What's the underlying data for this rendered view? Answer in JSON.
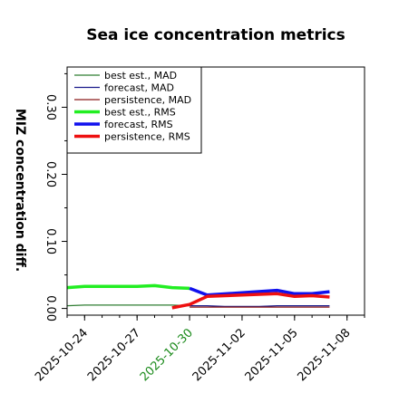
{
  "chart_data": {
    "type": "line",
    "title": "Sea ice concentration metrics",
    "xlabel": "",
    "ylabel": "MIZ concentration diff.",
    "x_ticks": [
      "2025-10-24",
      "2025-10-27",
      "2025-10-30",
      "2025-11-02",
      "2025-11-05",
      "2025-11-08"
    ],
    "highlight_tick": "2025-10-30",
    "highlight_color": "#1a8a1a",
    "y_ticks": [
      "0.00",
      "0.10",
      "0.20",
      "0.30"
    ],
    "xlim": [
      "2025-10-23",
      "2025-11-09"
    ],
    "ylim": [
      -0.01,
      0.36
    ],
    "legend_position": "upper left",
    "grid": false,
    "series": [
      {
        "name": "best est., MAD",
        "color": "#2e7d32",
        "width": 1.3,
        "x": [
          "2025-10-23",
          "2025-10-24",
          "2025-10-25",
          "2025-10-26",
          "2025-10-27",
          "2025-10-28",
          "2025-10-29",
          "2025-10-30"
        ],
        "y": [
          0.004,
          0.005,
          0.005,
          0.005,
          0.005,
          0.005,
          0.005,
          0.004
        ]
      },
      {
        "name": "forecast,  MAD",
        "color": "#1a1a8c",
        "width": 1.3,
        "x": [
          "2025-10-30",
          "2025-10-31",
          "2025-11-01",
          "2025-11-02",
          "2025-11-03",
          "2025-11-04",
          "2025-11-05",
          "2025-11-06",
          "2025-11-07"
        ],
        "y": [
          0.004,
          0.004,
          0.003,
          0.003,
          0.003,
          0.004,
          0.004,
          0.004,
          0.004
        ]
      },
      {
        "name": "persistence, MAD",
        "color": "#8b1a1a",
        "width": 1.3,
        "x": [
          "2025-10-30",
          "2025-10-31",
          "2025-11-01",
          "2025-11-02",
          "2025-11-03",
          "2025-11-04",
          "2025-11-05",
          "2025-11-06",
          "2025-11-07"
        ],
        "y": [
          0.002,
          0.002,
          0.002,
          0.002,
          0.002,
          0.002,
          0.002,
          0.002,
          0.002
        ]
      },
      {
        "name": "best est., RMS",
        "color": "#22ee22",
        "width": 3.5,
        "x": [
          "2025-10-23",
          "2025-10-24",
          "2025-10-25",
          "2025-10-26",
          "2025-10-27",
          "2025-10-28",
          "2025-10-29",
          "2025-10-30"
        ],
        "y": [
          0.031,
          0.033,
          0.033,
          0.033,
          0.033,
          0.034,
          0.031,
          0.03
        ]
      },
      {
        "name": "forecast,  RMS",
        "color": "#1010ee",
        "width": 3.5,
        "x": [
          "2025-10-30",
          "2025-10-31",
          "2025-11-04",
          "2025-11-05",
          "2025-11-06",
          "2025-11-07"
        ],
        "y": [
          0.03,
          0.02,
          0.027,
          0.022,
          0.022,
          0.025
        ]
      },
      {
        "name": "persistence, RMS",
        "color": "#ee1010",
        "width": 3.5,
        "x": [
          "2025-10-29",
          "2025-10-30",
          "2025-10-31",
          "2025-11-04",
          "2025-11-05",
          "2025-11-06",
          "2025-11-07"
        ],
        "y": [
          0.001,
          0.006,
          0.018,
          0.022,
          0.018,
          0.019,
          0.017
        ]
      }
    ]
  }
}
